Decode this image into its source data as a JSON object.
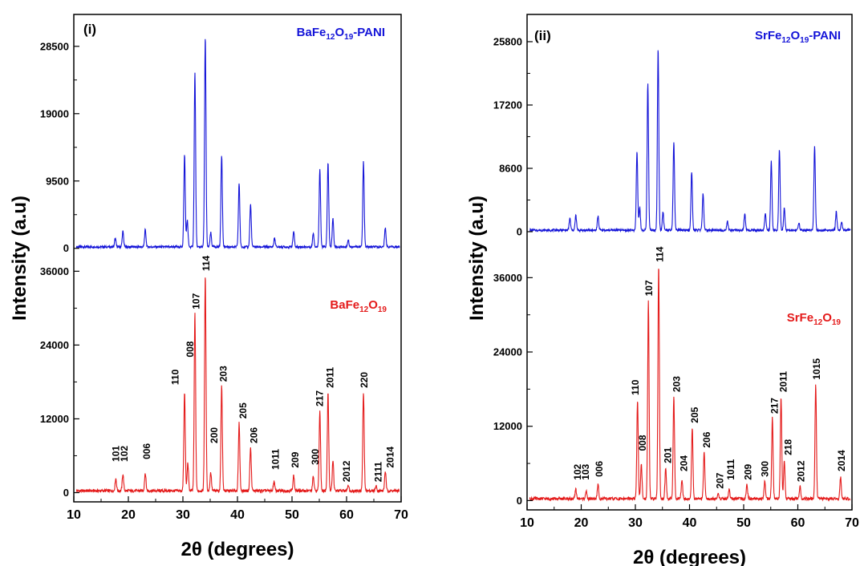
{
  "chart_data": [
    {
      "type": "line",
      "panel": "(i)",
      "xlabel": "2θ (degrees)",
      "ylabel": "Intensity (a.u)",
      "xlim": [
        10,
        70
      ],
      "x_ticks": [
        10,
        20,
        30,
        40,
        50,
        60,
        70
      ],
      "grid": false,
      "subplots": [
        {
          "position": "top",
          "ylim": [
            -1500,
            33000
          ],
          "y_ticks": [
            0,
            9500,
            19000,
            28500
          ],
          "series": [
            {
              "name_parts": [
                [
                  "BaFe",
                  ""
                ],
                [
                  "12",
                  "sub"
                ],
                [
                  "O",
                  ""
                ],
                [
                  "19",
                  "sub"
                ],
                [
                  "-PANI",
                  ""
                ]
              ],
              "color": "#1414d8",
              "baseline": 200,
              "peaks": [
                [
                  17.6,
                  1200
                ],
                [
                  19.0,
                  2200
                ],
                [
                  23.1,
                  2400
                ],
                [
                  30.3,
                  13000
                ],
                [
                  30.8,
                  3800
                ],
                [
                  32.2,
                  24700
                ],
                [
                  34.1,
                  29700
                ],
                [
                  35.1,
                  2000
                ],
                [
                  37.1,
                  13000
                ],
                [
                  40.3,
                  9000
                ],
                [
                  42.4,
                  6000
                ],
                [
                  46.8,
                  1200
                ],
                [
                  50.3,
                  2200
                ],
                [
                  53.9,
                  2000
                ],
                [
                  55.1,
                  11000
                ],
                [
                  56.6,
                  12000
                ],
                [
                  57.5,
                  4000
                ],
                [
                  60.3,
                  1000
                ],
                [
                  63.1,
                  12000
                ],
                [
                  67.1,
                  2700
                ]
              ]
            }
          ]
        },
        {
          "position": "bottom",
          "ylim": [
            -1500,
            38000
          ],
          "y_ticks": [
            0,
            12000,
            24000,
            36000
          ],
          "series": [
            {
              "name_parts": [
                [
                  "BaFe",
                  ""
                ],
                [
                  "12",
                  "sub"
                ],
                [
                  "O",
                  ""
                ],
                [
                  "19",
                  "sub"
                ]
              ],
              "color": "#e41a1a",
              "baseline": 300,
              "peaks": [
                [
                  17.7,
                  2000
                ],
                [
                  19.0,
                  2700
                ],
                [
                  23.1,
                  2900
                ],
                [
                  30.3,
                  16000
                ],
                [
                  30.9,
                  4500
                ],
                [
                  32.2,
                  29000
                ],
                [
                  34.1,
                  35000
                ],
                [
                  35.1,
                  3000
                ],
                [
                  37.1,
                  17000
                ],
                [
                  40.3,
                  11000
                ],
                [
                  42.4,
                  7000
                ],
                [
                  46.7,
                  1500
                ],
                [
                  50.3,
                  2500
                ],
                [
                  53.9,
                  2300
                ],
                [
                  55.1,
                  13000
                ],
                [
                  56.6,
                  16000
                ],
                [
                  57.5,
                  5000
                ],
                [
                  60.3,
                  1000
                ],
                [
                  63.1,
                  16000
                ],
                [
                  65.4,
                  800
                ],
                [
                  67.1,
                  3200
                ]
              ]
            }
          ],
          "annotations": [
            "101",
            "102",
            "006",
            "110",
            "008",
            "107",
            "114",
            "200",
            "203",
            "205",
            "206",
            "1011",
            "209",
            "300",
            "217",
            "2011",
            "2012",
            "220",
            "2111",
            "2014"
          ]
        }
      ]
    },
    {
      "type": "line",
      "panel": "(ii)",
      "xlabel": "2θ (degrees)",
      "ylabel": "Intensity (a.u)",
      "xlim": [
        10,
        70
      ],
      "x_ticks": [
        10,
        20,
        30,
        40,
        50,
        60,
        70
      ],
      "grid": false,
      "subplots": [
        {
          "position": "top",
          "ylim": [
            -1200,
            29500
          ],
          "y_ticks": [
            0,
            8600,
            17200,
            25800
          ],
          "series": [
            {
              "name_parts": [
                [
                  "SrFe",
                  ""
                ],
                [
                  "12",
                  "sub"
                ],
                [
                  "O",
                  ""
                ],
                [
                  "19",
                  "sub"
                ],
                [
                  "-PANI",
                  ""
                ]
              ],
              "color": "#1414d8",
              "baseline": 200,
              "peaks": [
                [
                  17.9,
                  1600
                ],
                [
                  19.0,
                  2000
                ],
                [
                  23.1,
                  1900
                ],
                [
                  30.3,
                  10800
                ],
                [
                  30.8,
                  3000
                ],
                [
                  32.3,
                  20000
                ],
                [
                  34.2,
                  24600
                ],
                [
                  35.1,
                  2500
                ],
                [
                  37.1,
                  12000
                ],
                [
                  40.4,
                  8000
                ],
                [
                  42.5,
                  5000
                ],
                [
                  47.0,
                  1200
                ],
                [
                  50.2,
                  2200
                ],
                [
                  54.0,
                  2300
                ],
                [
                  55.1,
                  9300
                ],
                [
                  56.6,
                  11000
                ],
                [
                  57.5,
                  3000
                ],
                [
                  60.2,
                  900
                ],
                [
                  63.1,
                  11500
                ],
                [
                  67.1,
                  2500
                ],
                [
                  68.1,
                  1000
                ]
              ]
            }
          ]
        },
        {
          "position": "bottom",
          "ylim": [
            -1500,
            42000
          ],
          "y_ticks": [
            0,
            12000,
            24000,
            36000
          ],
          "series": [
            {
              "name_parts": [
                [
                  "SrFe",
                  ""
                ],
                [
                  "12",
                  "sub"
                ],
                [
                  "O",
                  ""
                ],
                [
                  "19",
                  "sub"
                ]
              ],
              "color": "#e41a1a",
              "baseline": 300,
              "peaks": [
                [
                  19.0,
                  1500
                ],
                [
                  20.9,
                  1200
                ],
                [
                  23.1,
                  2300
                ],
                [
                  30.4,
                  16000
                ],
                [
                  31.1,
                  5500
                ],
                [
                  32.4,
                  32000
                ],
                [
                  34.3,
                  37600
                ],
                [
                  35.6,
                  5000
                ],
                [
                  37.1,
                  16500
                ],
                [
                  38.6,
                  3000
                ],
                [
                  40.5,
                  11500
                ],
                [
                  42.7,
                  7500
                ],
                [
                  45.3,
                  800
                ],
                [
                  47.3,
                  1500
                ],
                [
                  50.6,
                  2200
                ],
                [
                  53.9,
                  2800
                ],
                [
                  55.3,
                  13000
                ],
                [
                  56.9,
                  16500
                ],
                [
                  57.5,
                  6000
                ],
                [
                  60.4,
                  2000
                ],
                [
                  63.3,
                  18500
                ],
                [
                  67.9,
                  3500
                ]
              ]
            }
          ],
          "annotations": [
            "102",
            "103",
            "006",
            "110",
            "008",
            "107",
            "114",
            "201",
            "203",
            "204",
            "205",
            "206",
            "207",
            "1011",
            "209",
            "300",
            "217",
            "2011",
            "218",
            "2012",
            "1015",
            "2014"
          ]
        }
      ]
    }
  ]
}
